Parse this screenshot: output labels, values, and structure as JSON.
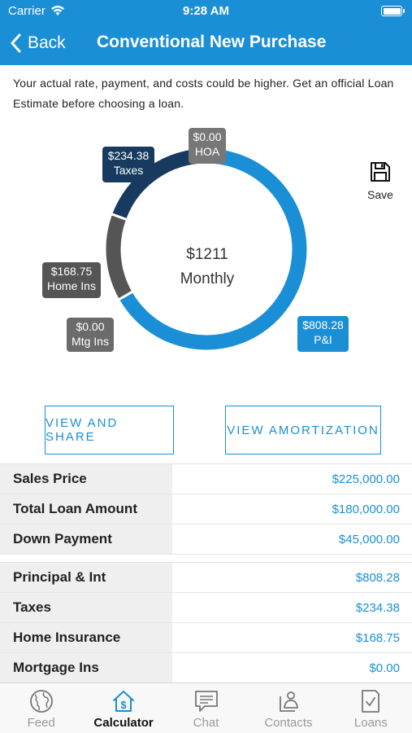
{
  "status": {
    "carrier": "Carrier",
    "time": "9:28 AM"
  },
  "nav": {
    "back_label": "Back",
    "title": "Conventional New Purchase"
  },
  "disclaimer": "Your actual rate, payment, and costs could be higher. Get an official Loan Estimate before choosing a loan.",
  "chart_data": {
    "type": "pie",
    "center_amount": "$1211",
    "center_label": "Monthly",
    "slices": [
      {
        "amount": "$808.28",
        "name": "P&I",
        "value": 808.28,
        "color": "#1b8fd6"
      },
      {
        "amount": "$0.00",
        "name": "Mtg Ins",
        "value": 0.0,
        "color": "#6b6b6b"
      },
      {
        "amount": "$168.75",
        "name": "Home Ins",
        "value": 168.75,
        "color": "#555555"
      },
      {
        "amount": "$234.38",
        "name": "Taxes",
        "value": 234.38,
        "color": "#173a5e"
      },
      {
        "amount": "$0.00",
        "name": "HOA",
        "value": 0.0,
        "color": "#777777"
      }
    ]
  },
  "save": {
    "label": "Save",
    "icon": "floppy-disk-icon"
  },
  "buttons": {
    "view_share": "VIEW AND SHARE",
    "view_amortization": "VIEW AMORTIZATION"
  },
  "summary": [
    {
      "label": "Sales Price",
      "value": "$225,000.00"
    },
    {
      "label": "Total Loan Amount",
      "value": "$180,000.00"
    },
    {
      "label": "Down Payment",
      "value": "$45,000.00"
    }
  ],
  "breakdown": [
    {
      "label": "Principal & Int",
      "value": "$808.28"
    },
    {
      "label": "Taxes",
      "value": "$234.38"
    },
    {
      "label": "Home Insurance",
      "value": "$168.75"
    },
    {
      "label": "Mortgage Ins",
      "value": "$0.00"
    }
  ],
  "tabs": [
    {
      "label": "Feed",
      "icon": "globe-icon",
      "active": false
    },
    {
      "label": "Calculator",
      "icon": "house-dollar-icon",
      "active": true
    },
    {
      "label": "Chat",
      "icon": "chat-bubble-icon",
      "active": false
    },
    {
      "label": "Contacts",
      "icon": "contact-card-icon",
      "active": false
    },
    {
      "label": "Loans",
      "icon": "checklist-icon",
      "active": false
    }
  ],
  "colors": {
    "accent": "#1b8fd6",
    "taxes": "#173a5e",
    "gray": "#555555"
  }
}
